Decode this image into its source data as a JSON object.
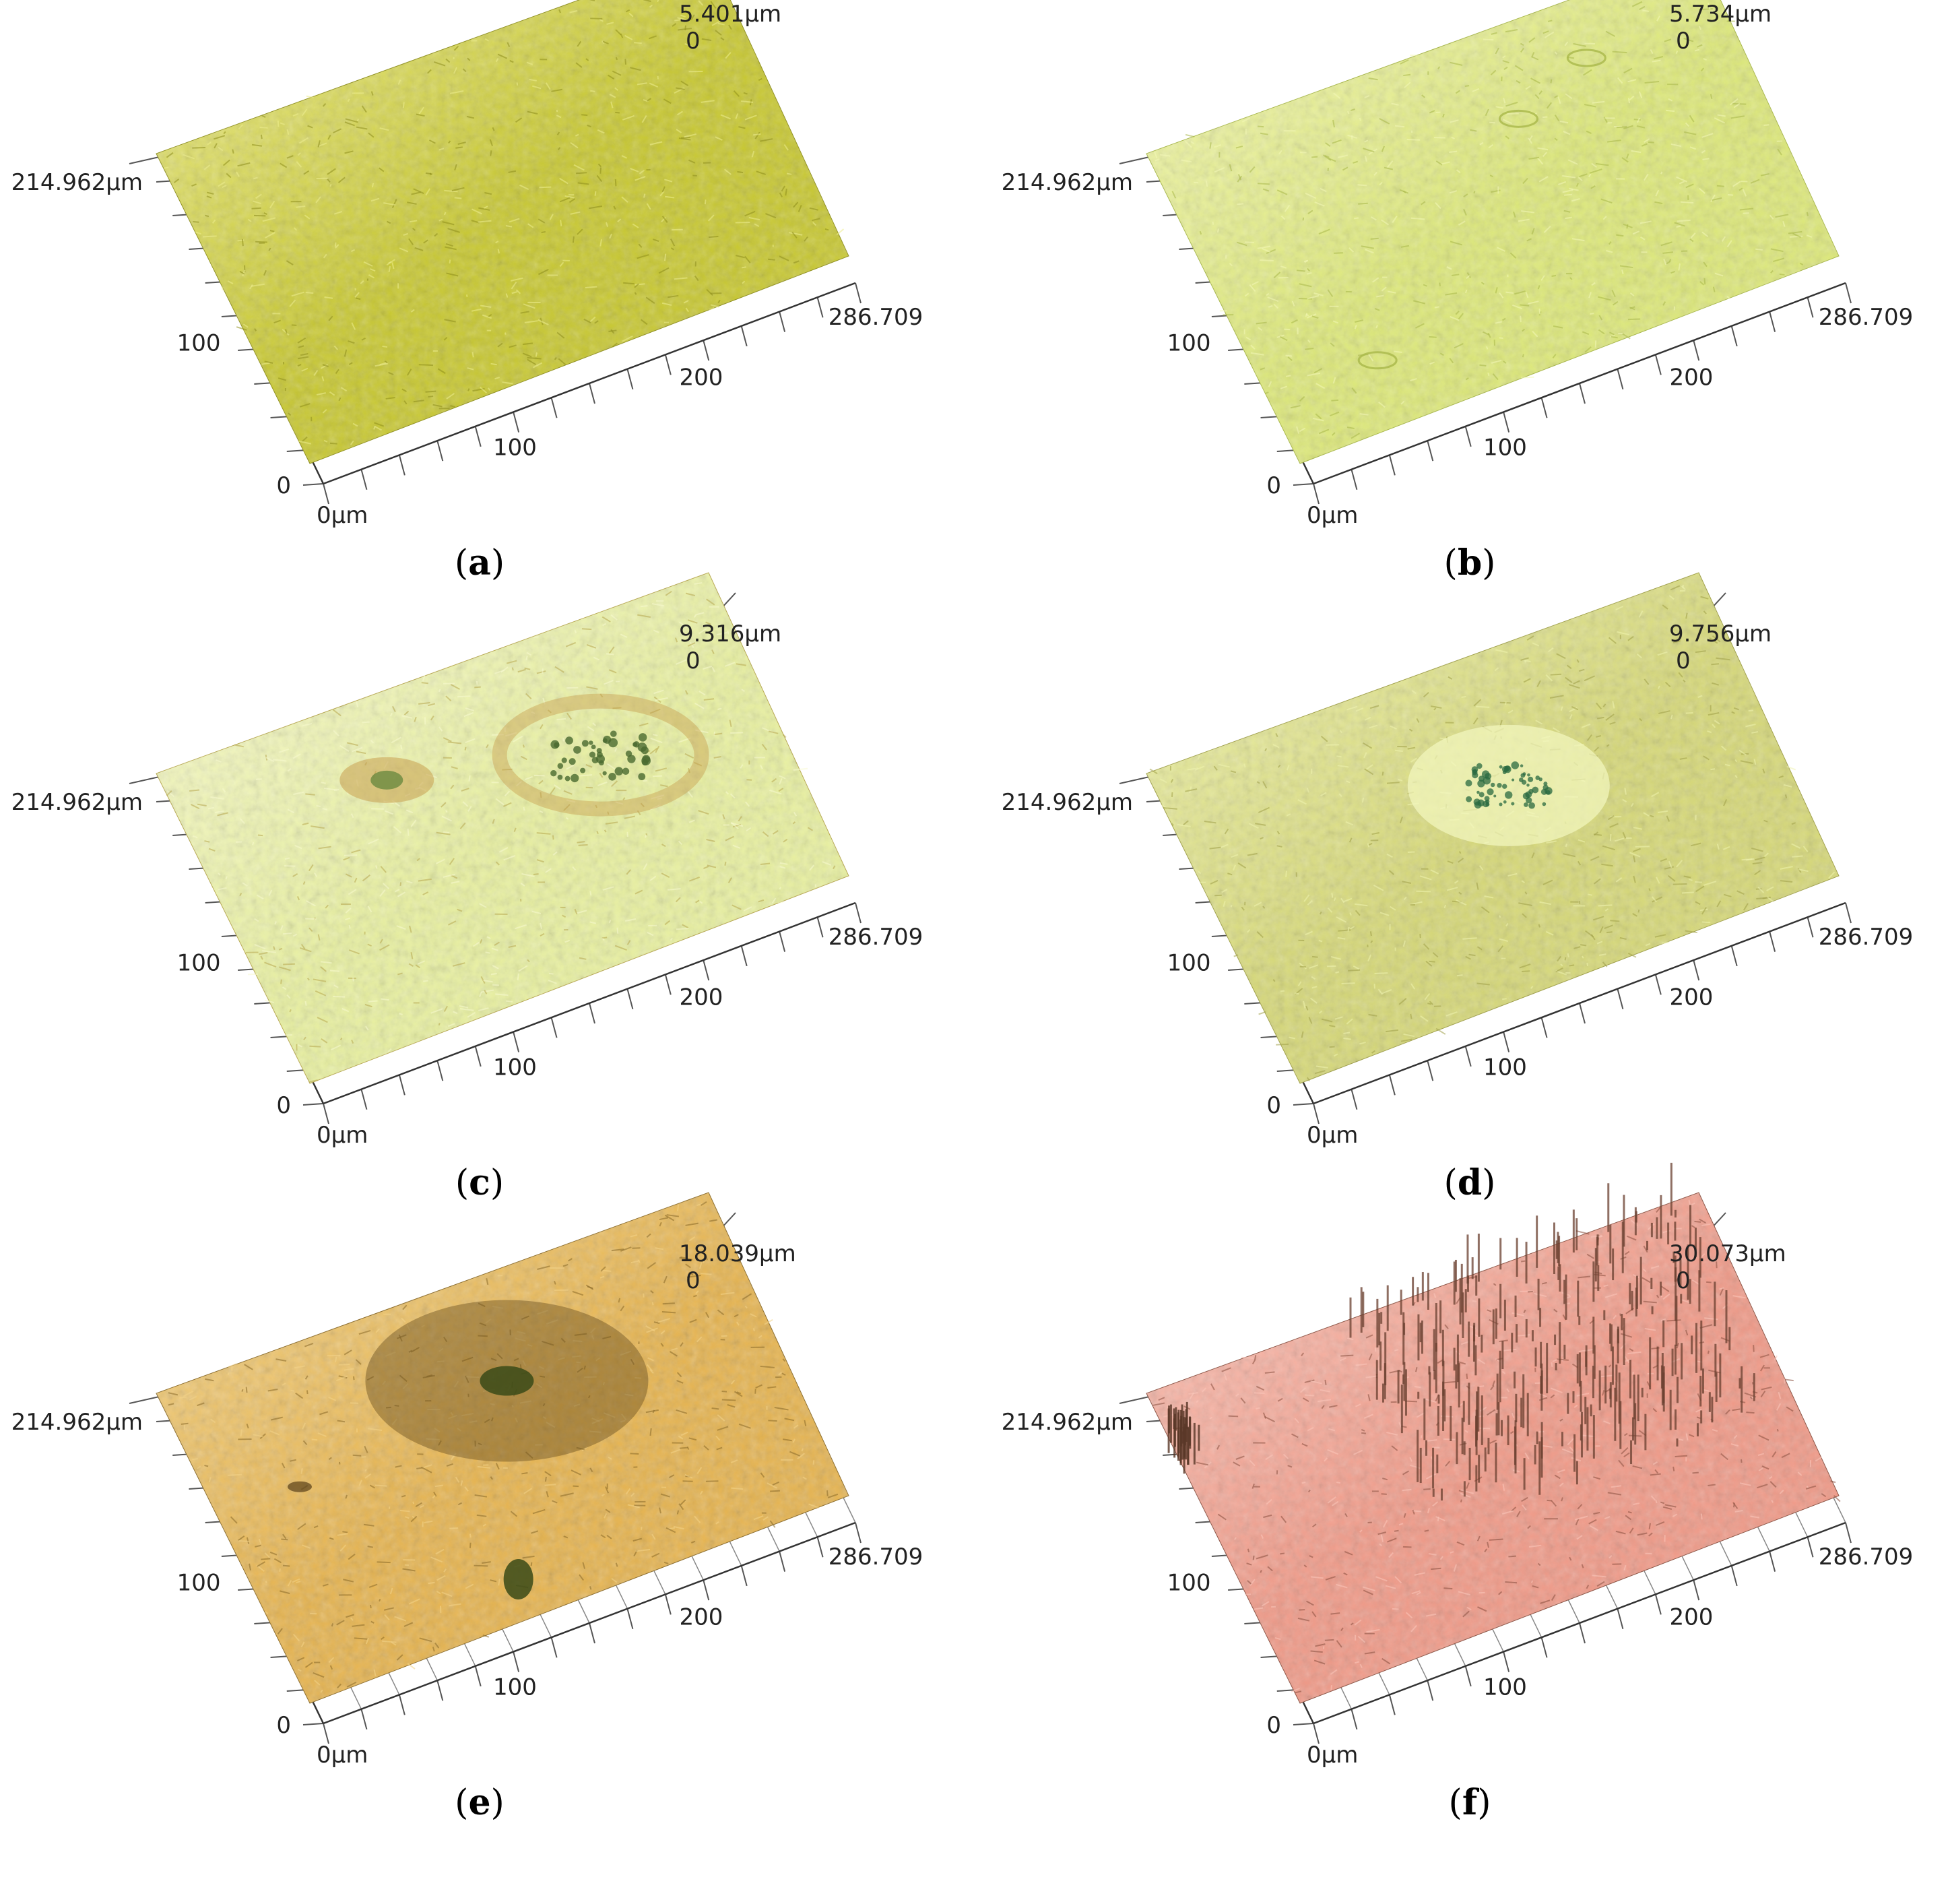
{
  "figure": {
    "panels": [
      {
        "id": "a",
        "caption_letter": "a",
        "z_max_label": "5.401µm",
        "z_zero_label": "0",
        "y_max_label": "214.962µm",
        "y_mid_label": "100",
        "y_zero_label": "0",
        "x_origin_label": "0µm",
        "x_mid1_label": "100",
        "x_mid2_label": "200",
        "x_max_label": "286.709",
        "surface_color": "#c8c832",
        "surface_highlight": "#eeee90",
        "surface_shadow": "#8f8f1c",
        "has_relief": false
      },
      {
        "id": "b",
        "caption_letter": "b",
        "z_max_label": "5.734µm",
        "z_zero_label": "0",
        "y_max_label": "214.962µm",
        "y_mid_label": "100",
        "y_zero_label": "0",
        "x_origin_label": "0µm",
        "x_mid1_label": "100",
        "x_mid2_label": "200",
        "x_max_label": "286.709",
        "surface_color": "#dde87a",
        "surface_highlight": "#f4f8b8",
        "surface_shadow": "#a9b84a",
        "has_relief": false
      },
      {
        "id": "c",
        "caption_letter": "c",
        "z_max_label": "9.316µm",
        "z_zero_label": "0",
        "y_max_label": "214.962µm",
        "y_mid_label": "100",
        "y_zero_label": "0",
        "x_origin_label": "0µm",
        "x_mid1_label": "100",
        "x_mid2_label": "200",
        "x_max_label": "286.709",
        "surface_color": "#e8f0a0",
        "surface_highlight": "#f8fad0",
        "surface_shadow": "#b8a850",
        "has_relief": false
      },
      {
        "id": "d",
        "caption_letter": "d",
        "z_max_label": "9.756µm",
        "z_zero_label": "0",
        "y_max_label": "214.962µm",
        "y_mid_label": "100",
        "y_zero_label": "0",
        "x_origin_label": "0µm",
        "x_mid1_label": "100",
        "x_mid2_label": "200",
        "x_max_label": "286.709",
        "surface_color": "#d6d878",
        "surface_highlight": "#f0f4b0",
        "surface_shadow": "#a0a048",
        "has_relief": false
      },
      {
        "id": "e",
        "caption_letter": "e",
        "z_max_label": "18.039µm",
        "z_zero_label": "0",
        "y_max_label": "214.962µm",
        "y_mid_label": "100",
        "y_zero_label": "0",
        "x_origin_label": "0µm",
        "x_mid1_label": "100",
        "x_mid2_label": "200",
        "x_max_label": "286.709",
        "surface_color": "#e6b450",
        "surface_highlight": "#f4d48a",
        "surface_shadow": "#8a6a28",
        "has_relief": false
      },
      {
        "id": "f",
        "caption_letter": "f",
        "z_max_label": "30.073µm",
        "z_zero_label": "0",
        "y_max_label": "214.962µm",
        "y_mid_label": "100",
        "y_zero_label": "0",
        "x_origin_label": "0µm",
        "x_mid1_label": "100",
        "x_mid2_label": "200",
        "x_max_label": "286.709",
        "surface_color": "#f09a88",
        "surface_highlight": "#fcc8bc",
        "surface_shadow": "#8a5040",
        "has_relief": true
      }
    ]
  }
}
